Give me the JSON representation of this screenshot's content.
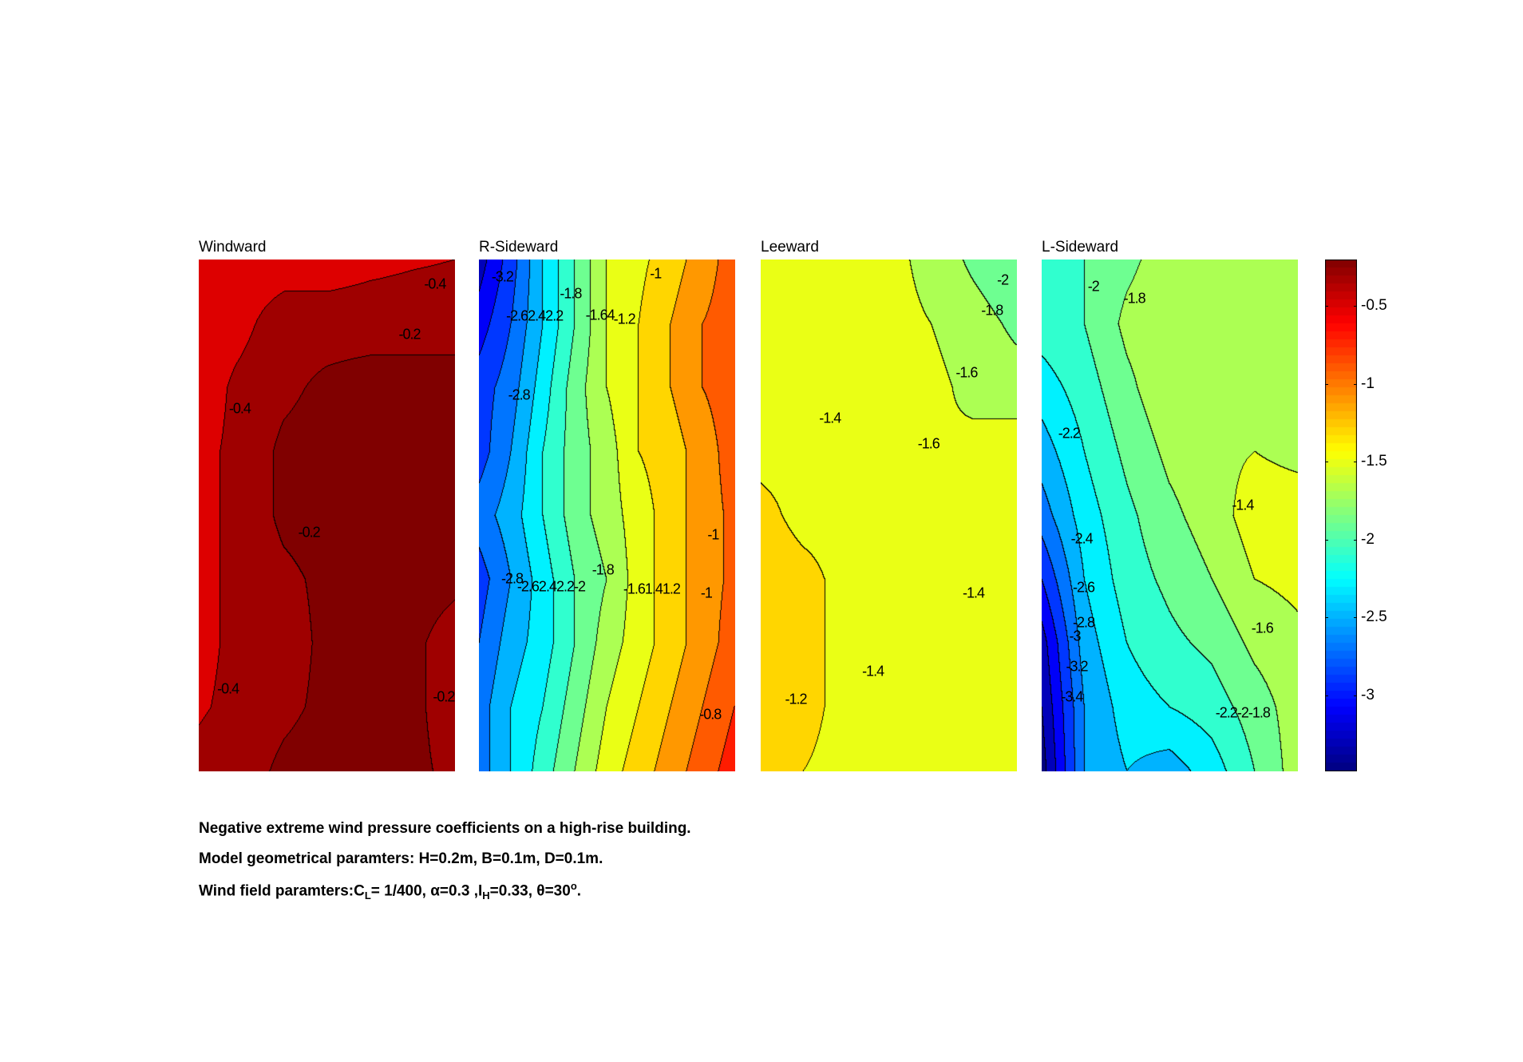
{
  "chart_data": {
    "type": "heatmap",
    "subtype": "filled-contour",
    "contour_step": 0.2,
    "clim": [
      -3.49,
      -0.2
    ],
    "colormap": "jet",
    "colorbar": {
      "ticks": [
        -0.5,
        -1,
        -1.5,
        -2,
        -2.5,
        -3
      ],
      "tick_labels": [
        "-0.5",
        "-1",
        "-1.5",
        "-2",
        "-2.5",
        "-3"
      ],
      "placement": "right"
    },
    "panels": [
      {
        "title": "Windward",
        "z": [
          [
            -0.5,
            -0.5,
            -0.5,
            -0.5,
            -0.45,
            -0.42,
            -0.4
          ],
          [
            -0.5,
            -0.45,
            -0.3,
            -0.3,
            -0.3,
            -0.3,
            -0.3
          ],
          [
            -0.5,
            -0.35,
            -0.25,
            -0.15,
            -0.1,
            -0.1,
            -0.1
          ],
          [
            -0.45,
            -0.35,
            -0.15,
            -0.1,
            -0.1,
            -0.1,
            -0.1
          ],
          [
            -0.45,
            -0.35,
            -0.15,
            -0.1,
            -0.1,
            -0.1,
            -0.1
          ],
          [
            -0.45,
            -0.35,
            -0.25,
            -0.15,
            -0.1,
            -0.1,
            -0.15
          ],
          [
            -0.45,
            -0.35,
            -0.3,
            -0.15,
            -0.1,
            -0.15,
            -0.3
          ],
          [
            -0.42,
            -0.35,
            -0.25,
            -0.15,
            -0.1,
            -0.15,
            -0.3
          ],
          [
            -0.35,
            -0.3,
            -0.15,
            -0.1,
            -0.1,
            -0.15,
            -0.25
          ]
        ],
        "contour_labels": [
          "-0.4",
          "-0.2",
          "-0.4",
          "-0.2",
          "-0.4",
          "-0.2"
        ]
      },
      {
        "title": "R-Sideward",
        "z": [
          [
            -3.3,
            -2.9,
            -2.4,
            -2.0,
            -1.6,
            -1.45,
            -1.3,
            -1.1,
            -0.9
          ],
          [
            -3.1,
            -2.8,
            -2.4,
            -2.0,
            -1.6,
            -1.4,
            -1.2,
            -1.0,
            -0.9
          ],
          [
            -2.9,
            -2.7,
            -2.3,
            -1.9,
            -1.6,
            -1.4,
            -1.2,
            -1.0,
            -0.9
          ],
          [
            -2.9,
            -2.6,
            -2.2,
            -1.9,
            -1.7,
            -1.4,
            -1.3,
            -1.1,
            -0.9
          ],
          [
            -2.7,
            -2.5,
            -2.2,
            -1.9,
            -1.7,
            -1.5,
            -1.3,
            -1.1,
            -0.95
          ],
          [
            -2.9,
            -2.6,
            -2.3,
            -2.0,
            -1.8,
            -1.5,
            -1.3,
            -1.1,
            -0.95
          ],
          [
            -2.8,
            -2.5,
            -2.3,
            -2.0,
            -1.7,
            -1.5,
            -1.3,
            -1.1,
            -0.9
          ],
          [
            -2.7,
            -2.4,
            -2.2,
            -1.9,
            -1.6,
            -1.4,
            -1.2,
            -1.0,
            -0.8
          ],
          [
            -2.7,
            -2.4,
            -2.1,
            -1.8,
            -1.5,
            -1.3,
            -1.1,
            -0.9,
            -0.7
          ]
        ],
        "contour_labels": [
          "-3.2",
          "-2.62.42.2",
          "-1.8",
          "-1.64",
          "-1.2",
          "-1",
          "-2.8",
          "-1",
          "-2.8",
          "-2.62.42.2-2",
          "-1.8",
          "-1.61.41.2",
          "-1",
          "-0.8"
        ]
      },
      {
        "title": "Leeward",
        "z": [
          [
            -1.45,
            -1.45,
            -1.45,
            -1.55,
            -1.65,
            -1.85,
            -2.0
          ],
          [
            -1.45,
            -1.45,
            -1.5,
            -1.55,
            -1.6,
            -1.7,
            -1.85
          ],
          [
            -1.45,
            -1.45,
            -1.55,
            -1.55,
            -1.55,
            -1.65,
            -1.7
          ],
          [
            -1.45,
            -1.45,
            -1.55,
            -1.55,
            -1.6,
            -1.55,
            -1.5
          ],
          [
            -1.35,
            -1.45,
            -1.45,
            -1.55,
            -1.55,
            -1.45,
            -1.45
          ],
          [
            -1.3,
            -1.35,
            -1.45,
            -1.45,
            -1.45,
            -1.45,
            -1.55
          ],
          [
            -1.3,
            -1.35,
            -1.45,
            -1.5,
            -1.45,
            -1.45,
            -1.45
          ],
          [
            -1.3,
            -1.35,
            -1.45,
            -1.5,
            -1.45,
            -1.45,
            -1.45
          ],
          [
            -1.35,
            -1.4,
            -1.45,
            -1.45,
            -1.45,
            -1.45,
            -1.45
          ]
        ],
        "contour_labels": [
          "-2",
          "-1.8",
          "-1.6",
          "-1.4",
          "-1.6",
          "-1.4",
          "-1.4",
          "-1.2"
        ]
      },
      {
        "title": "L-Sideward",
        "z": [
          [
            -2.1,
            -2.0,
            -1.85,
            -1.7,
            -1.65,
            -1.65,
            -1.65
          ],
          [
            -2.1,
            -2.0,
            -1.75,
            -1.65,
            -1.65,
            -1.65,
            -1.65
          ],
          [
            -2.3,
            -2.1,
            -1.85,
            -1.65,
            -1.65,
            -1.65,
            -1.65
          ],
          [
            -2.5,
            -2.2,
            -1.95,
            -1.75,
            -1.65,
            -1.6,
            -1.65
          ],
          [
            -2.7,
            -2.3,
            -2.05,
            -1.85,
            -1.7,
            -1.5,
            -1.5
          ],
          [
            -3.0,
            -2.4,
            -2.1,
            -1.95,
            -1.8,
            -1.6,
            -1.55
          ],
          [
            -3.3,
            -2.5,
            -2.2,
            -2.05,
            -1.95,
            -1.75,
            -1.65
          ],
          [
            -3.4,
            -2.6,
            -2.3,
            -2.2,
            -2.1,
            -1.9,
            -1.7
          ],
          [
            -3.5,
            -2.6,
            -2.4,
            -2.5,
            -2.3,
            -2.0,
            -1.7
          ]
        ],
        "contour_labels": [
          "-2",
          "-1.8",
          "-2.2",
          "-1.4",
          "-2.4",
          "-2.6",
          "-2.8",
          "-3",
          "-3.2",
          "-3.4",
          "-1.6",
          "-2.2-2-1.8"
        ]
      }
    ]
  },
  "caption": {
    "line1": "Negative extreme wind pressure coefficients on a high-rise building.",
    "line2": "Model geometrical paramters: H=0.2m, B=0.1m, D=0.1m.",
    "line3_prefix": "Wind field paramters:C",
    "line3_sub1": "L",
    "line3_mid1": "= 1/400, α=0.3 ,I",
    "line3_sub2": "H",
    "line3_mid2": "=0.33, θ=30",
    "line3_sup": "o",
    "line3_end": "."
  }
}
